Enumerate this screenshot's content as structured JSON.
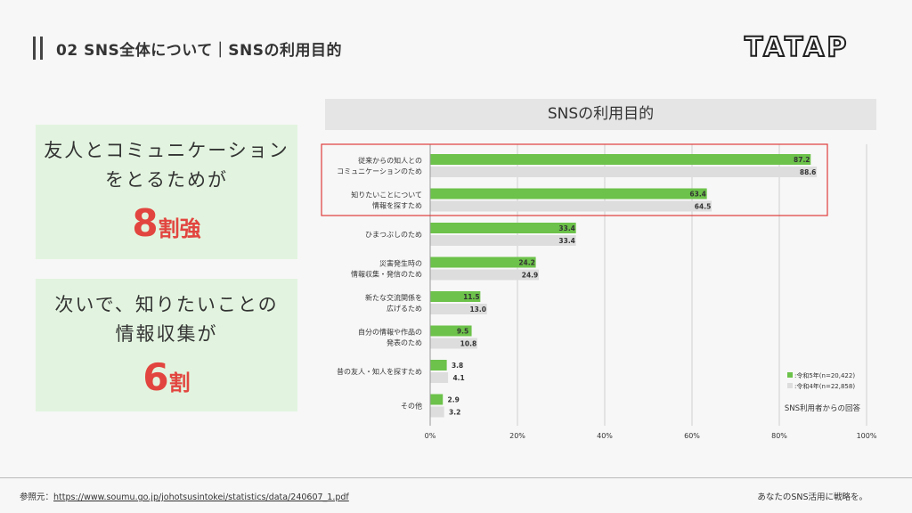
{
  "header": {
    "title": "02 SNS全体について｜SNSの利用目的"
  },
  "logo": {
    "text": "TATAP"
  },
  "card1": {
    "line1": "友人とコミュニケーション",
    "line2": "をとるためが",
    "number": "8",
    "unit": "割強"
  },
  "card2": {
    "line1": "次いで、知りたいことの",
    "line2": "情報収集が",
    "number": "6",
    "unit": "割"
  },
  "chart_title": "SNSの利用目的",
  "chart_data": {
    "type": "bar",
    "orientation": "horizontal",
    "categories": [
      [
        "従来からの知人との",
        "コミュニケーションのため"
      ],
      [
        "知りたいことについて",
        "情報を探すため"
      ],
      [
        "ひまつぶしのため"
      ],
      [
        "災害発生時の",
        "情報収集・発信のため"
      ],
      [
        "新たな交流関係を",
        "広げるため"
      ],
      [
        "自分の情報や作品の",
        "発表のため"
      ],
      [
        "昔の友人・知人を探すため"
      ],
      [
        "その他"
      ]
    ],
    "series": [
      {
        "name": ":令和5年(n=20,422)",
        "color": "#6cc24a",
        "values": [
          87.2,
          63.4,
          33.4,
          24.2,
          11.5,
          9.5,
          3.8,
          2.9
        ],
        "labels": [
          "87.2",
          "63.4",
          "33.4",
          "24.2",
          "11.5",
          "9.5",
          "3.8",
          "2.9"
        ]
      },
      {
        "name": ":令和4年(n=22,858)",
        "color": "#dddddd",
        "values": [
          88.6,
          64.5,
          33.4,
          24.9,
          13.0,
          10.8,
          4.1,
          3.2
        ],
        "labels": [
          "88.6",
          "64.5",
          "33.4",
          "24.9",
          "13.0",
          "10.8",
          "4.1",
          "3.2"
        ]
      }
    ],
    "xlim": [
      0,
      100
    ],
    "xticks": [
      "0%",
      "20%",
      "40%",
      "60%",
      "80%",
      "100%"
    ],
    "grid": true,
    "legend_position": "bottom-right",
    "note": "SNS利用者からの回答",
    "highlight_color": "#e03b3b",
    "highlight_rows": [
      0,
      1
    ]
  },
  "footer": {
    "source_label": "参照元：",
    "source_url": "https://www.soumu.go.jp/johotsusintokei/statistics/data/240607_1.pdf",
    "tagline": "あなたのSNS活用に戦略を。"
  }
}
